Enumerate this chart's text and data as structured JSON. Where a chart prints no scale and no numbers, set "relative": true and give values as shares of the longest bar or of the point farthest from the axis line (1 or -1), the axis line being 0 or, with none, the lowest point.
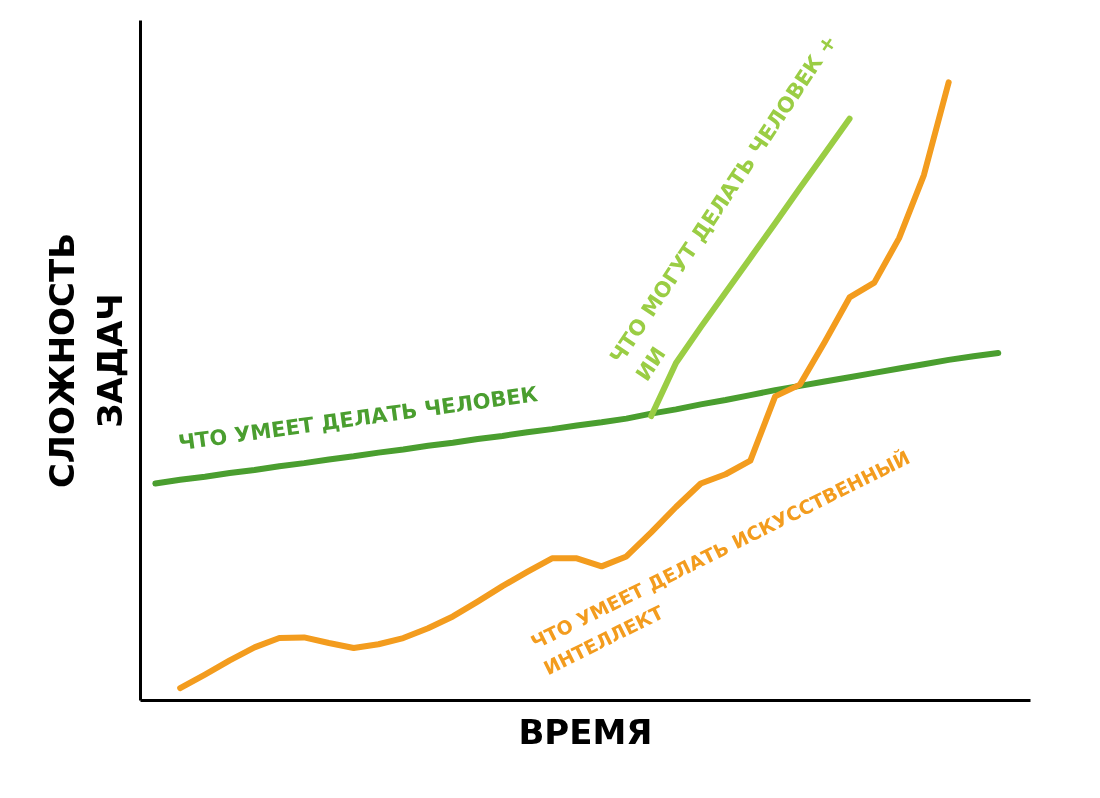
{
  "chart_data": {
    "type": "line",
    "xlabel": "ВРЕМЯ",
    "ylabel": "СЛОЖНОСТЬ ЗАДАЧ",
    "relative": true,
    "grid": false,
    "categories": [
      null,
      null,
      null,
      null,
      null,
      null,
      null,
      null,
      null,
      null,
      null,
      null,
      null,
      null,
      null,
      null,
      null,
      null,
      null,
      null,
      null,
      null,
      null,
      null,
      null,
      null,
      null,
      null,
      null,
      null,
      null,
      null,
      null,
      null,
      null
    ],
    "series": [
      {
        "name": "ЧТО УМЕЕТ ДЕЛАТЬ ЧЕЛОВЕК",
        "color": "#4a9e2f",
        "values": [
          0.351,
          0.357,
          0.362,
          0.368,
          0.373,
          0.379,
          0.384,
          0.39,
          0.395,
          0.401,
          0.406,
          0.412,
          0.417,
          0.423,
          0.428,
          0.434,
          0.439,
          0.445,
          0.45,
          0.456,
          0.464,
          0.471,
          0.479,
          0.486,
          0.494,
          0.502,
          0.509,
          0.516,
          0.523,
          0.53,
          0.537,
          0.544,
          0.551,
          0.557,
          0.562
        ]
      },
      {
        "name": "ЧТО МОГУТ ДЕЛАТЬ ЧЕЛОВЕК + ИИ",
        "color": "#9acd44",
        "values": [
          null,
          null,
          null,
          null,
          null,
          null,
          null,
          null,
          null,
          null,
          null,
          null,
          null,
          null,
          null,
          null,
          null,
          null,
          null,
          null,
          0.46,
          0.546,
          0.604,
          0.66,
          0.716,
          0.772,
          0.829,
          0.885,
          0.941,
          null,
          null,
          null,
          null,
          null,
          null
        ]
      },
      {
        "name": "ЧТО УМЕЕТ ДЕЛАТЬ ИСКУССТВЕННЫЙ ИНТЕЛЛЕКТ",
        "color": "#f39c1e",
        "values": [
          null,
          0.02,
          0.042,
          0.065,
          0.086,
          0.101,
          0.102,
          0.093,
          0.085,
          0.091,
          0.101,
          0.117,
          0.136,
          0.16,
          0.185,
          0.208,
          0.23,
          0.23,
          0.217,
          0.233,
          0.272,
          0.313,
          0.351,
          0.366,
          0.388,
          0.492,
          0.511,
          0.58,
          0.652,
          0.676,
          0.748,
          0.85,
          1,
          null,
          null
        ]
      }
    ]
  }
}
